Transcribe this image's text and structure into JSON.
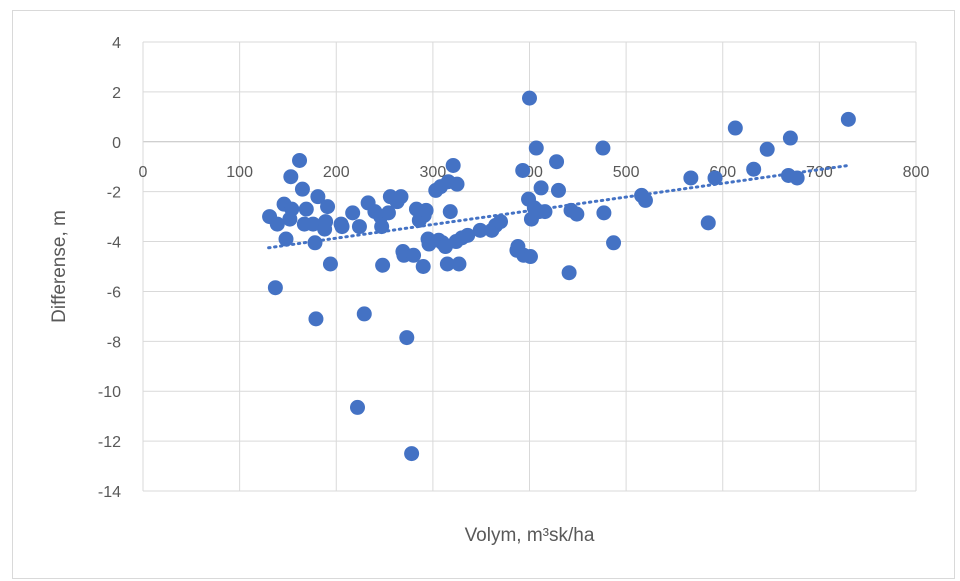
{
  "chart_data": {
    "type": "scatter",
    "xlabel": "Volym, m³sk/ha",
    "ylabel": "Differense, m",
    "xlim": [
      0,
      800
    ],
    "ylim": [
      -14,
      4
    ],
    "xticks": [
      0,
      100,
      200,
      300,
      400,
      500,
      600,
      700,
      800
    ],
    "yticks": [
      4,
      2,
      0,
      -2,
      -4,
      -6,
      -8,
      -10,
      -12,
      -14
    ],
    "grid": true,
    "legend": "none",
    "marker_color": "#4472c4",
    "trendline": {
      "type": "linear",
      "style": "dotted",
      "x": [
        130,
        730
      ],
      "y": [
        -4.25,
        -0.95
      ]
    },
    "points": [
      [
        131,
        -3.0
      ],
      [
        137,
        -5.85
      ],
      [
        139,
        -3.3
      ],
      [
        146,
        -2.5
      ],
      [
        148,
        -3.9
      ],
      [
        152,
        -3.1
      ],
      [
        153,
        -1.4
      ],
      [
        154,
        -2.7
      ],
      [
        162,
        -0.75
      ],
      [
        165,
        -1.9
      ],
      [
        167,
        -3.3
      ],
      [
        169,
        -2.7
      ],
      [
        176,
        -3.3
      ],
      [
        178,
        -4.05
      ],
      [
        179,
        -7.1
      ],
      [
        181,
        -2.2
      ],
      [
        188,
        -3.5
      ],
      [
        189,
        -3.2
      ],
      [
        191,
        -2.6
      ],
      [
        194,
        -4.9
      ],
      [
        205,
        -3.3
      ],
      [
        206,
        -3.4
      ],
      [
        217,
        -2.85
      ],
      [
        222,
        -10.65
      ],
      [
        224,
        -3.4
      ],
      [
        229,
        -6.9
      ],
      [
        233,
        -2.45
      ],
      [
        240,
        -2.8
      ],
      [
        246,
        -3.0
      ],
      [
        247,
        -3.4
      ],
      [
        248,
        -4.95
      ],
      [
        254,
        -2.85
      ],
      [
        256,
        -2.2
      ],
      [
        263,
        -2.4
      ],
      [
        267,
        -2.2
      ],
      [
        269,
        -4.4
      ],
      [
        270,
        -4.55
      ],
      [
        273,
        -7.85
      ],
      [
        278,
        -12.5
      ],
      [
        280,
        -4.55
      ],
      [
        283,
        -2.7
      ],
      [
        286,
        -3.15
      ],
      [
        290,
        -5.0
      ],
      [
        291,
        -2.95
      ],
      [
        293,
        -2.75
      ],
      [
        295,
        -3.9
      ],
      [
        296,
        -4.1
      ],
      [
        303,
        -1.95
      ],
      [
        306,
        -3.95
      ],
      [
        308,
        -1.8
      ],
      [
        310,
        -4.05
      ],
      [
        313,
        -4.2
      ],
      [
        315,
        -4.9
      ],
      [
        316,
        -1.6
      ],
      [
        318,
        -2.8
      ],
      [
        321,
        -0.95
      ],
      [
        324,
        -4.0
      ],
      [
        325,
        -1.7
      ],
      [
        327,
        -4.9
      ],
      [
        330,
        -3.85
      ],
      [
        336,
        -3.75
      ],
      [
        349,
        -3.55
      ],
      [
        361,
        -3.55
      ],
      [
        365,
        -3.35
      ],
      [
        370,
        -3.2
      ],
      [
        387,
        -4.35
      ],
      [
        388,
        -4.2
      ],
      [
        393,
        -1.15
      ],
      [
        394,
        -4.55
      ],
      [
        399,
        -2.3
      ],
      [
        400,
        1.75
      ],
      [
        401,
        -4.6
      ],
      [
        402,
        -3.1
      ],
      [
        405,
        -2.65
      ],
      [
        407,
        -0.25
      ],
      [
        410,
        -2.8
      ],
      [
        412,
        -1.85
      ],
      [
        416,
        -2.8
      ],
      [
        428,
        -0.8
      ],
      [
        430,
        -1.95
      ],
      [
        441,
        -5.25
      ],
      [
        443,
        -2.75
      ],
      [
        449,
        -2.9
      ],
      [
        476,
        -0.25
      ],
      [
        477,
        -2.85
      ],
      [
        487,
        -4.05
      ],
      [
        516,
        -2.15
      ],
      [
        520,
        -2.35
      ],
      [
        567,
        -1.45
      ],
      [
        585,
        -3.25
      ],
      [
        592,
        -1.45
      ],
      [
        613,
        0.55
      ],
      [
        632,
        -1.1
      ],
      [
        646,
        -0.3
      ],
      [
        668,
        -1.35
      ],
      [
        670,
        0.15
      ],
      [
        677,
        -1.45
      ],
      [
        730,
        0.9
      ]
    ]
  }
}
